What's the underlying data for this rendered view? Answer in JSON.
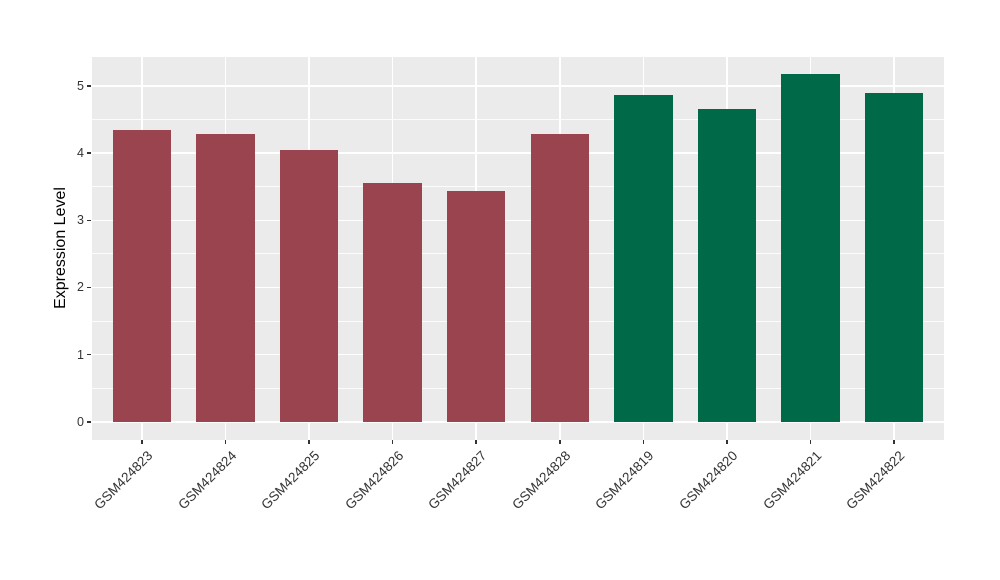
{
  "chart_data": {
    "type": "bar",
    "ylabel": "Expression Level",
    "xlabel": "",
    "categories": [
      "GSM424823",
      "GSM424824",
      "GSM424825",
      "GSM424826",
      "GSM424827",
      "GSM424828",
      "GSM424819",
      "GSM424820",
      "GSM424821",
      "GSM424822"
    ],
    "values": [
      4.35,
      4.29,
      4.05,
      3.56,
      3.43,
      4.29,
      4.86,
      4.65,
      5.18,
      4.89
    ],
    "bar_colors": [
      "#9A4450",
      "#9A4450",
      "#9A4450",
      "#9A4450",
      "#9A4450",
      "#9A4450",
      "#006A48",
      "#006A48",
      "#006A48",
      "#006A48"
    ],
    "group_colors": {
      "maroon": "#9A4450",
      "green": "#006A48"
    },
    "y_ticks": [
      0,
      1,
      2,
      3,
      4,
      5
    ],
    "y_minor_ticks": [
      0.5,
      1.5,
      2.5,
      3.5,
      4.5
    ],
    "ylim": [
      -0.27,
      5.43
    ],
    "bar_width_fraction": 0.7,
    "grid": "on",
    "legend": "none",
    "panel_background": "#EBEBEB",
    "grid_major_color": "#FFFFFF",
    "grid_minor_color": "#FFFFFF",
    "axis_text_color": "#333333",
    "tick_mark_color": "#333333",
    "figure_background": "#FFFFFF"
  }
}
